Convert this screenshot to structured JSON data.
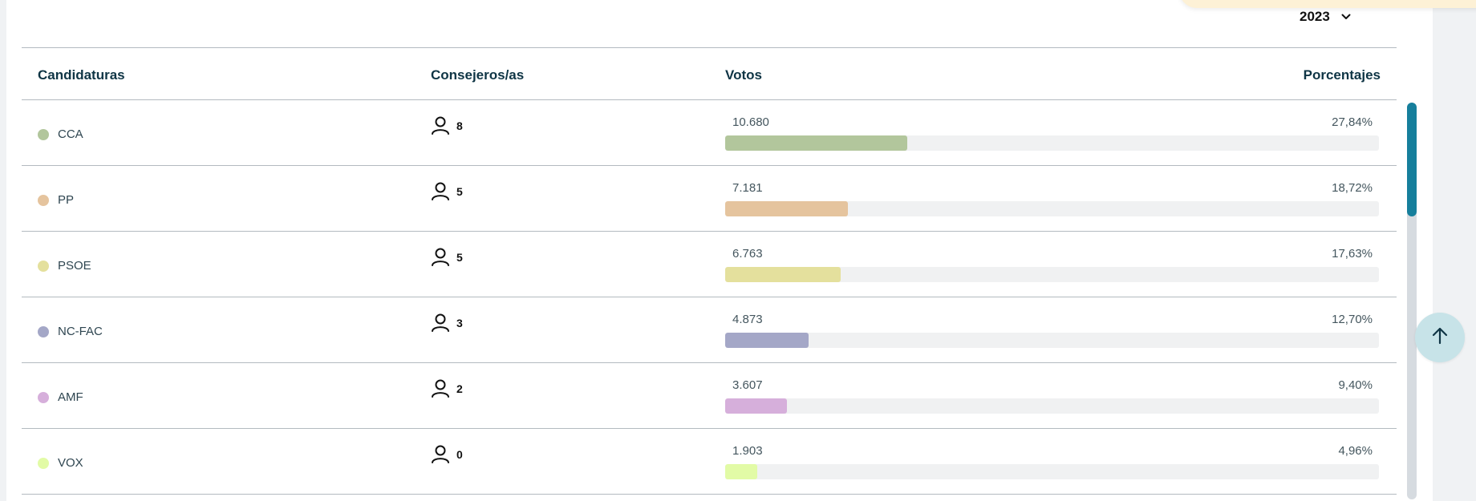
{
  "year_selector": {
    "value": "2023"
  },
  "table": {
    "headers": {
      "candidaturas": "Candidaturas",
      "consejeros": "Consejeros/as",
      "votos": "Votos",
      "porcentajes": "Porcentajes"
    },
    "rows": [
      {
        "party": "CCA",
        "seats": "8",
        "votes": "10.680",
        "percent": "27,84%",
        "share": 0.2784,
        "color": "#b2c69c"
      },
      {
        "party": "PP",
        "seats": "5",
        "votes": "7.181",
        "percent": "18,72%",
        "share": 0.1872,
        "color": "#e5c49e"
      },
      {
        "party": "PSOE",
        "seats": "5",
        "votes": "6.763",
        "percent": "17,63%",
        "share": 0.1763,
        "color": "#e4e09d"
      },
      {
        "party": "NC-FAC",
        "seats": "3",
        "votes": "4.873",
        "percent": "12,70%",
        "share": 0.127,
        "color": "#a4a7c7"
      },
      {
        "party": "AMF",
        "seats": "2",
        "votes": "3.607",
        "percent": "9,40%",
        "share": 0.094,
        "color": "#d6afdb"
      },
      {
        "party": "VOX",
        "seats": "0",
        "votes": "1.903",
        "percent": "4,96%",
        "share": 0.0496,
        "color": "#e2fba6"
      }
    ]
  },
  "colors": {
    "header_text": "#0f3545",
    "scroll_thumb": "#167f9c",
    "up_button_bg": "#c7e3e8"
  },
  "icons": {
    "seats": "person-icon",
    "dropdown": "chevron-down-icon",
    "scroll_top": "arrow-up-icon"
  }
}
